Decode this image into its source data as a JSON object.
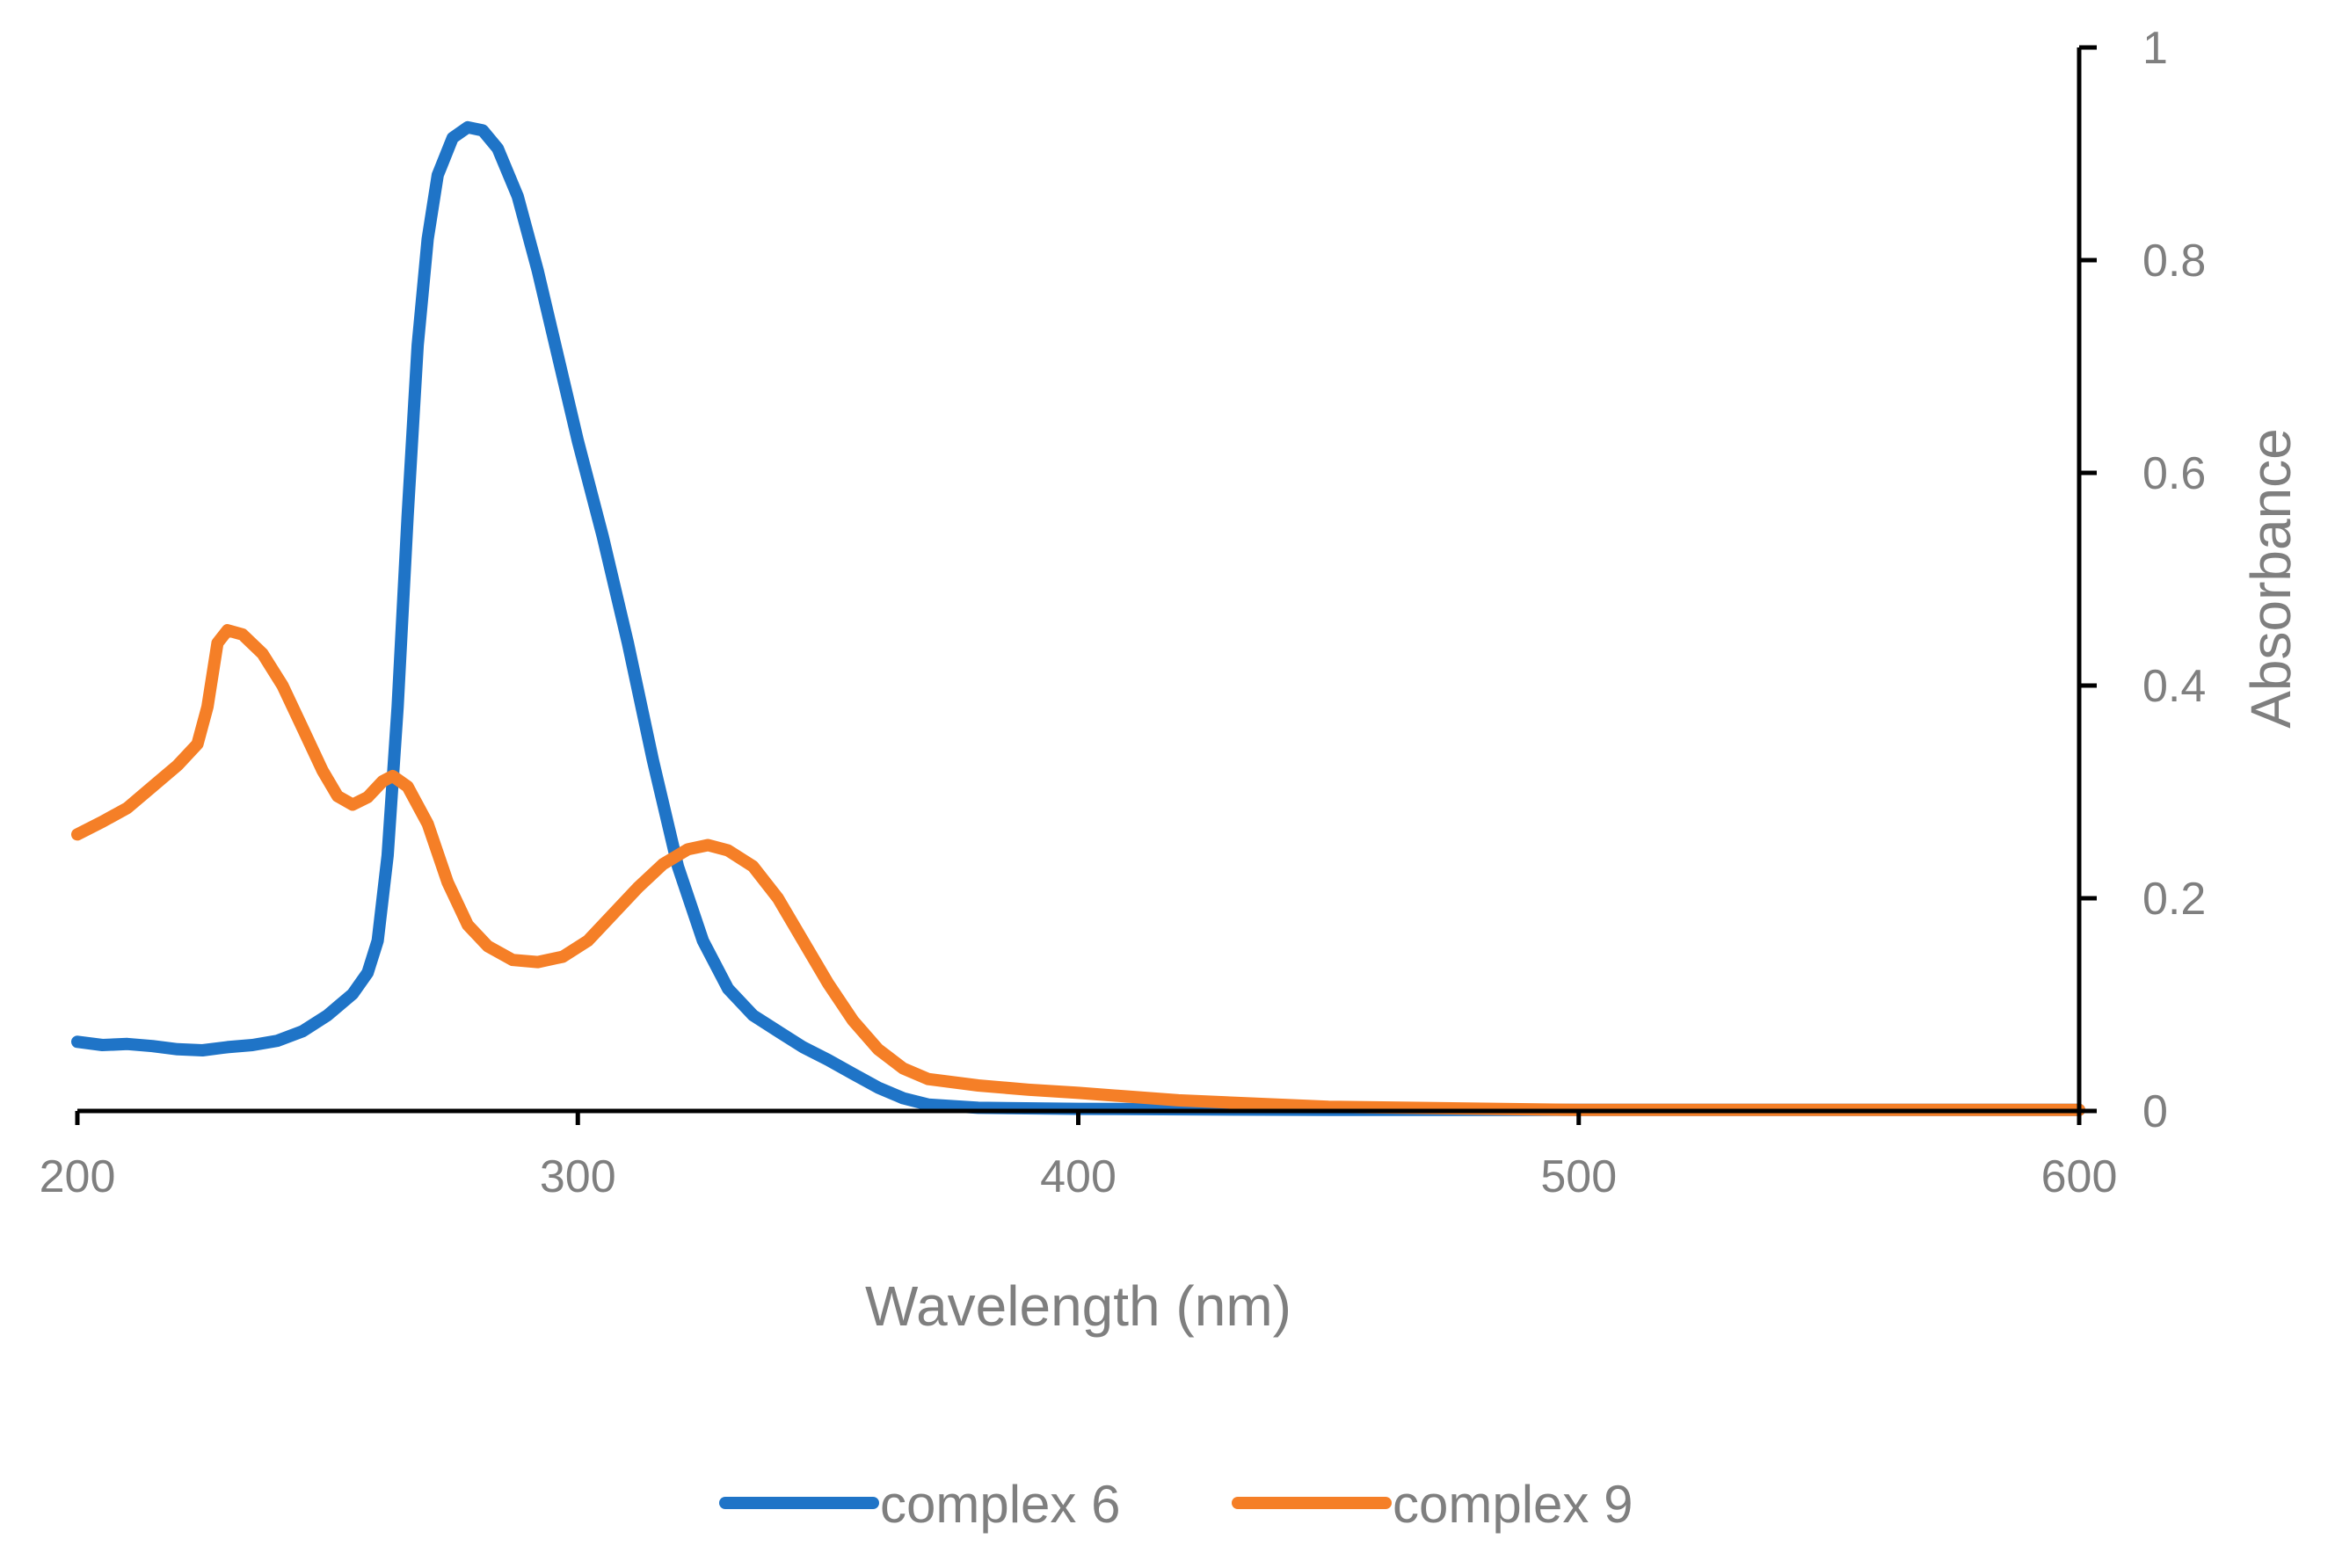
{
  "chart_data": {
    "type": "line",
    "title": "",
    "xlabel": "Wavelength (nm)",
    "ylabel": "Absorbance",
    "xlim": [
      200,
      600
    ],
    "ylim": [
      0,
      1
    ],
    "x_ticks": [
      "200",
      "300",
      "400",
      "500",
      "600"
    ],
    "y_ticks": [
      "0",
      "0.2",
      "0.4",
      "0.6",
      "0.8",
      "1"
    ],
    "y_axis_side": "right",
    "grid": false,
    "legend_position": "bottom",
    "series": [
      {
        "name": "complex 6",
        "color": "#1f74c7",
        "points": [
          [
            200,
            0.065
          ],
          [
            205,
            0.062
          ],
          [
            210,
            0.063
          ],
          [
            215,
            0.061
          ],
          [
            220,
            0.058
          ],
          [
            225,
            0.057
          ],
          [
            230,
            0.06
          ],
          [
            235,
            0.062
          ],
          [
            240,
            0.066
          ],
          [
            245,
            0.075
          ],
          [
            250,
            0.09
          ],
          [
            255,
            0.11
          ],
          [
            258,
            0.13
          ],
          [
            260,
            0.16
          ],
          [
            262,
            0.24
          ],
          [
            264,
            0.38
          ],
          [
            266,
            0.56
          ],
          [
            268,
            0.72
          ],
          [
            270,
            0.82
          ],
          [
            272,
            0.88
          ],
          [
            275,
            0.915
          ],
          [
            278,
            0.925
          ],
          [
            281,
            0.922
          ],
          [
            284,
            0.905
          ],
          [
            288,
            0.86
          ],
          [
            292,
            0.79
          ],
          [
            296,
            0.71
          ],
          [
            300,
            0.63
          ],
          [
            305,
            0.54
          ],
          [
            310,
            0.44
          ],
          [
            315,
            0.33
          ],
          [
            320,
            0.23
          ],
          [
            325,
            0.16
          ],
          [
            330,
            0.115
          ],
          [
            335,
            0.09
          ],
          [
            340,
            0.075
          ],
          [
            345,
            0.06
          ],
          [
            350,
            0.048
          ],
          [
            355,
            0.035
          ],
          [
            360,
            0.022
          ],
          [
            365,
            0.012
          ],
          [
            370,
            0.006
          ],
          [
            380,
            0.003
          ],
          [
            400,
            0.002
          ],
          [
            450,
            0.001
          ],
          [
            500,
            0.001
          ],
          [
            550,
            0.001
          ],
          [
            600,
            0.001
          ]
        ]
      },
      {
        "name": "complex 9",
        "color": "#f57f27",
        "points": [
          [
            200,
            0.26
          ],
          [
            205,
            0.272
          ],
          [
            210,
            0.285
          ],
          [
            215,
            0.305
          ],
          [
            220,
            0.325
          ],
          [
            224,
            0.345
          ],
          [
            226,
            0.38
          ],
          [
            228,
            0.44
          ],
          [
            230,
            0.452
          ],
          [
            233,
            0.448
          ],
          [
            237,
            0.43
          ],
          [
            241,
            0.4
          ],
          [
            245,
            0.36
          ],
          [
            249,
            0.32
          ],
          [
            252,
            0.296
          ],
          [
            255,
            0.288
          ],
          [
            258,
            0.295
          ],
          [
            261,
            0.31
          ],
          [
            263,
            0.315
          ],
          [
            266,
            0.305
          ],
          [
            270,
            0.27
          ],
          [
            274,
            0.215
          ],
          [
            278,
            0.175
          ],
          [
            282,
            0.155
          ],
          [
            287,
            0.142
          ],
          [
            292,
            0.14
          ],
          [
            297,
            0.145
          ],
          [
            302,
            0.16
          ],
          [
            307,
            0.185
          ],
          [
            312,
            0.21
          ],
          [
            317,
            0.232
          ],
          [
            322,
            0.246
          ],
          [
            326,
            0.25
          ],
          [
            330,
            0.245
          ],
          [
            335,
            0.23
          ],
          [
            340,
            0.2
          ],
          [
            345,
            0.16
          ],
          [
            350,
            0.12
          ],
          [
            355,
            0.085
          ],
          [
            360,
            0.058
          ],
          [
            365,
            0.04
          ],
          [
            370,
            0.03
          ],
          [
            380,
            0.024
          ],
          [
            390,
            0.02
          ],
          [
            400,
            0.017
          ],
          [
            420,
            0.01
          ],
          [
            450,
            0.004
          ],
          [
            500,
            0.001
          ],
          [
            550,
            0.001
          ],
          [
            600,
            0.001
          ]
        ]
      }
    ]
  }
}
